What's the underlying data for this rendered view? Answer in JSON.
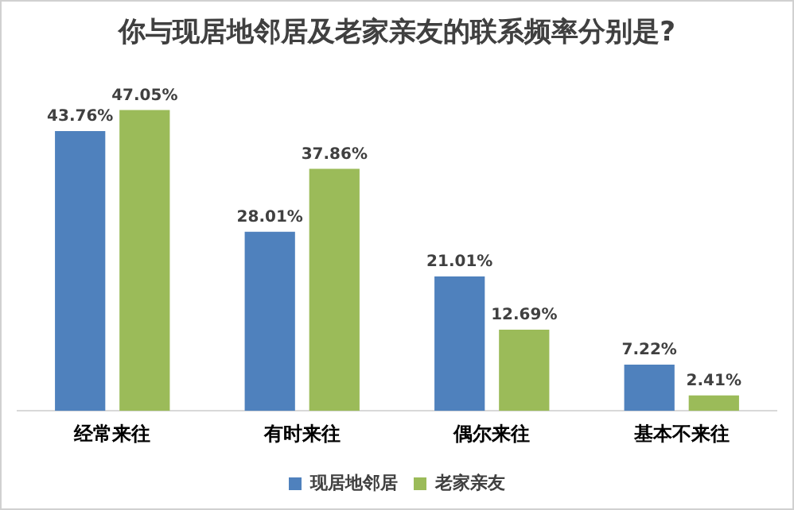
{
  "chart_data": {
    "type": "bar",
    "title": "你与现居地邻居及老家亲友的联系频率分别是?",
    "categories": [
      "经常来往",
      "有时来往",
      "偶尔来往",
      "基本不来往"
    ],
    "series": [
      {
        "name": "现居地邻居",
        "color": "#4f81bd",
        "values": [
          43.76,
          28.01,
          21.01,
          7.22
        ],
        "value_labels": [
          "43.76%",
          "28.01%",
          "21.01%",
          "7.22%"
        ]
      },
      {
        "name": "老家亲友",
        "color": "#9bbb59",
        "values": [
          47.05,
          37.86,
          12.69,
          2.41
        ],
        "value_labels": [
          "47.05%",
          "37.86%",
          "12.69%",
          "2.41%"
        ]
      }
    ],
    "legend": "bottom",
    "grid": false,
    "tick_labels": "x"
  }
}
